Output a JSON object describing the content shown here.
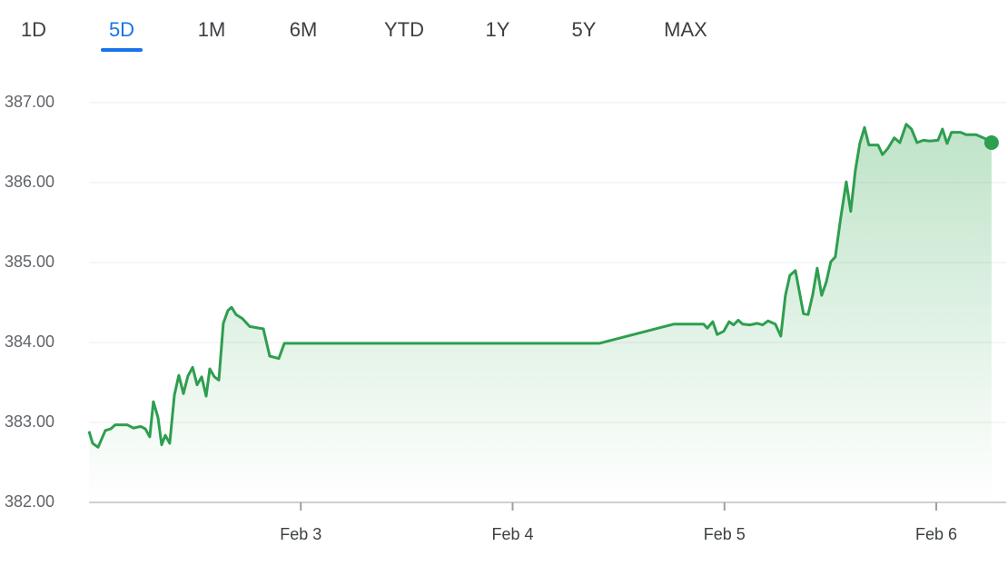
{
  "tabs": {
    "items": [
      "1D",
      "5D",
      "1M",
      "6M",
      "YTD",
      "1Y",
      "5Y",
      "MAX"
    ],
    "selected_index": 1
  },
  "chart_data": {
    "type": "line",
    "color": "#2e9e4f",
    "grid": true,
    "area_fill": true,
    "end_marker": true,
    "xlim": [
      2,
      6.33
    ],
    "ylim": [
      382,
      387
    ],
    "xticks": [
      {
        "value": 3,
        "label": "Feb 3"
      },
      {
        "value": 4,
        "label": "Feb 4"
      },
      {
        "value": 5,
        "label": "Feb 5"
      },
      {
        "value": 6,
        "label": "Feb 6"
      }
    ],
    "yticks": [
      {
        "value": 382,
        "label": "382.00"
      },
      {
        "value": 383,
        "label": "383.00"
      },
      {
        "value": 384,
        "label": "384.00"
      },
      {
        "value": 385,
        "label": "385.00"
      },
      {
        "value": 386,
        "label": "386.00"
      },
      {
        "value": 387,
        "label": "387.00"
      }
    ],
    "x": [
      2.0,
      2.017,
      2.043,
      2.077,
      2.103,
      2.124,
      2.18,
      2.21,
      2.244,
      2.266,
      2.287,
      2.304,
      2.326,
      2.343,
      2.36,
      2.381,
      2.403,
      2.424,
      2.446,
      2.467,
      2.489,
      2.51,
      2.532,
      2.553,
      2.57,
      2.592,
      2.613,
      2.634,
      2.656,
      2.673,
      2.694,
      2.724,
      2.759,
      2.823,
      2.853,
      2.896,
      2.922,
      4.409,
      4.76,
      4.902,
      4.919,
      4.945,
      4.966,
      4.996,
      5.022,
      5.043,
      5.065,
      5.086,
      5.12,
      5.155,
      5.18,
      5.206,
      5.24,
      5.266,
      5.288,
      5.309,
      5.335,
      5.373,
      5.395,
      5.416,
      5.438,
      5.459,
      5.481,
      5.502,
      5.523,
      5.549,
      5.575,
      5.596,
      5.618,
      5.639,
      5.661,
      5.682,
      5.725,
      5.746,
      5.772,
      5.802,
      5.828,
      5.858,
      5.883,
      5.909,
      5.939,
      5.969,
      6.008,
      6.029,
      6.051,
      6.072,
      6.115,
      6.141,
      6.188,
      6.231,
      6.261
    ],
    "values": [
      382.89,
      382.74,
      382.69,
      382.9,
      382.92,
      382.97,
      382.97,
      382.93,
      382.95,
      382.92,
      382.82,
      383.26,
      383.06,
      382.72,
      382.84,
      382.74,
      383.34,
      383.59,
      383.36,
      383.58,
      383.69,
      383.47,
      383.57,
      383.33,
      383.67,
      383.57,
      383.53,
      384.24,
      384.4,
      384.44,
      384.35,
      384.3,
      384.2,
      384.17,
      383.83,
      383.8,
      383.99,
      383.99,
      384.23,
      384.23,
      384.18,
      384.26,
      384.1,
      384.14,
      384.26,
      384.22,
      384.28,
      384.23,
      384.22,
      384.24,
      384.22,
      384.27,
      384.23,
      384.08,
      384.59,
      384.84,
      384.9,
      384.36,
      384.35,
      384.59,
      384.93,
      384.59,
      384.76,
      385.01,
      385.07,
      385.56,
      386.01,
      385.64,
      386.15,
      386.49,
      386.69,
      386.47,
      386.47,
      386.35,
      386.43,
      386.56,
      386.5,
      386.73,
      386.67,
      386.5,
      386.53,
      386.52,
      386.53,
      386.67,
      386.49,
      386.63,
      386.63,
      386.6,
      386.6,
      386.55,
      386.5
    ]
  }
}
